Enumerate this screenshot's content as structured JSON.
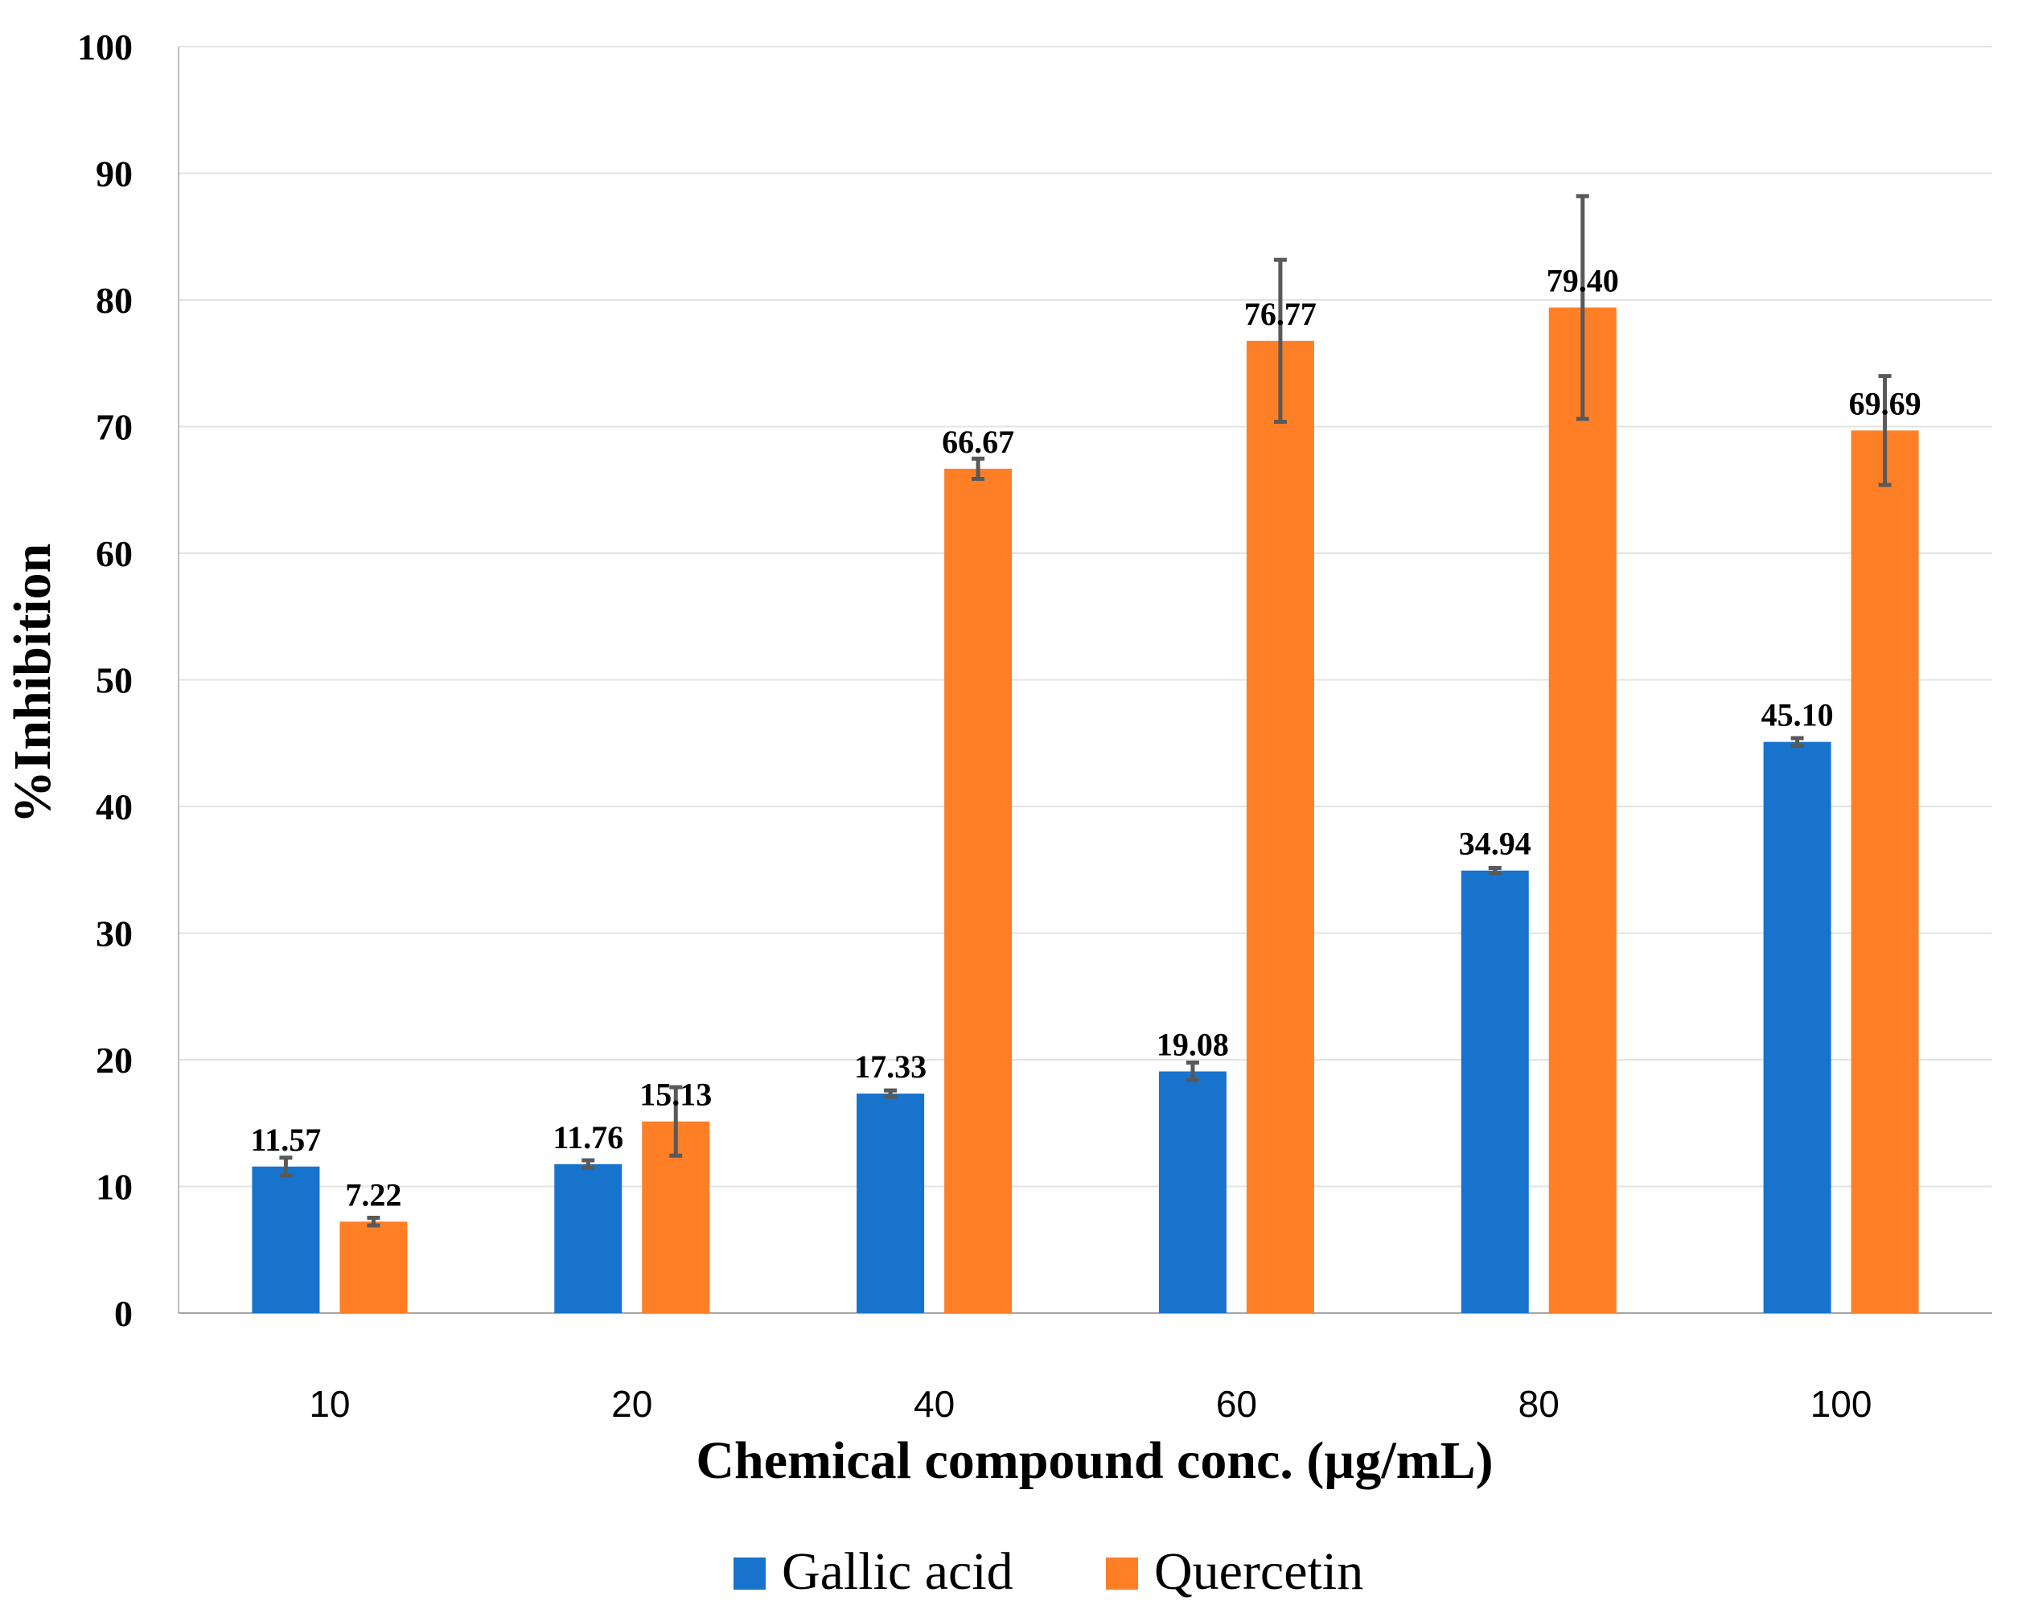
{
  "chart_data": {
    "type": "bar",
    "title": "",
    "xlabel": "Chemical compound conc. (µg/mL)",
    "ylabel": "%Inhibition",
    "ylim": [
      0,
      100
    ],
    "yticks": [
      0,
      10,
      20,
      30,
      40,
      50,
      60,
      70,
      80,
      90,
      100
    ],
    "ytick_labels": [
      "0",
      "10",
      "20",
      "30",
      "40",
      "50",
      "60",
      "70",
      "80",
      "90",
      "100"
    ],
    "categories": [
      "10",
      "20",
      "40",
      "60",
      "80",
      "100"
    ],
    "grid": true,
    "legend_position": "bottom",
    "series": [
      {
        "name": "Gallic acid",
        "color": "#1873CC",
        "values": [
          11.57,
          11.76,
          17.33,
          19.08,
          34.94,
          45.1
        ],
        "labels": [
          "11.57",
          "11.76",
          "17.33",
          "19.08",
          "34.94",
          "45.10"
        ],
        "errors": [
          0.7,
          0.3,
          0.25,
          0.7,
          0.2,
          0.3
        ]
      },
      {
        "name": "Quercetin",
        "color": "#FF7F27",
        "values": [
          7.22,
          15.13,
          66.67,
          76.77,
          79.4,
          69.69
        ],
        "labels": [
          "7.22",
          "15.13",
          "66.67",
          "76.77",
          "79.40",
          "69.69"
        ],
        "errors": [
          0.3,
          2.7,
          0.8,
          6.4,
          8.8,
          4.3
        ]
      }
    ]
  }
}
